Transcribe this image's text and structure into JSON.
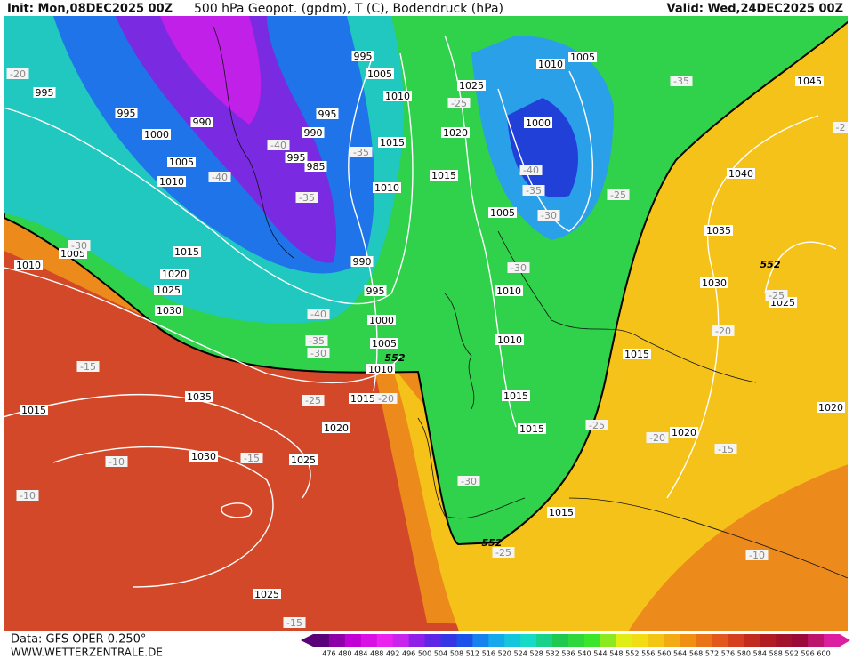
{
  "header": {
    "init": "Init: Mon,08DEC2025 00Z",
    "title": "500 hPa Geopot. (gpdm), T (C), Bodendruck (hPa)",
    "valid": "Valid: Wed,24DEC2025 00Z"
  },
  "footer": {
    "data": "Data: GFS OPER 0.250°",
    "site": "WWW.WETTERZENTRALE.DE"
  },
  "colorbar": {
    "labels": [
      "476",
      "480",
      "484",
      "488",
      "492",
      "496",
      "500",
      "504",
      "508",
      "512",
      "516",
      "520",
      "524",
      "528",
      "532",
      "536",
      "540",
      "544",
      "548",
      "552",
      "556",
      "560",
      "564",
      "568",
      "572",
      "576",
      "580",
      "584",
      "588",
      "592",
      "596",
      "600"
    ]
  },
  "labels": {
    "pressure": [
      "995",
      "995",
      "990",
      "1000",
      "1005",
      "1010",
      "1015",
      "1005",
      "1010",
      "1020",
      "1025",
      "1030",
      "995",
      "1005",
      "995",
      "990",
      "995",
      "985",
      "1010",
      "1015",
      "1010",
      "1015",
      "1020",
      "1025",
      "1010",
      "1005",
      "1000",
      "1005",
      "990",
      "995",
      "1000",
      "1005",
      "1010",
      "1015",
      "1020",
      "1025",
      "1030",
      "1035",
      "1015",
      "1010",
      "1010",
      "1015",
      "1015",
      "1015",
      "1015",
      "1020",
      "1020",
      "1025",
      "1030",
      "1035",
      "1040",
      "1045",
      "1025"
    ],
    "temperature": [
      "-20",
      "-25",
      "-40",
      "-35",
      "-40",
      "-35",
      "-40",
      "-35",
      "-30",
      "-25",
      "-35",
      "-30",
      "-30",
      "-40",
      "-35",
      "-30",
      "-25",
      "-20",
      "-15",
      "-10",
      "-10",
      "-15",
      "-30",
      "-25",
      "-20",
      "-15",
      "-25",
      "-20",
      "-25",
      "-10",
      "-15",
      "-2"
    ],
    "contour": [
      "552",
      "552",
      "552"
    ]
  }
}
